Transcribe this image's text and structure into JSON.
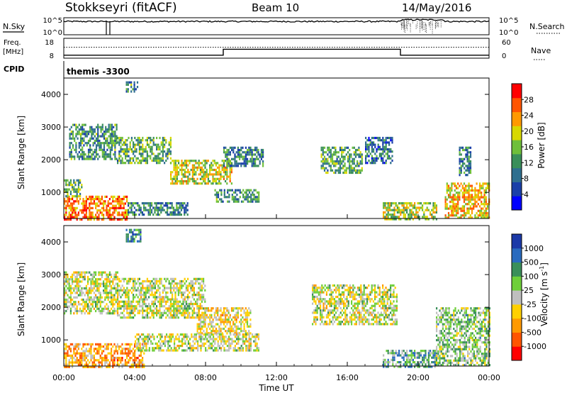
{
  "header": {
    "station": "Stokkseyri (fitACF)",
    "beam": "Beam 10",
    "date": "14/May/2016"
  },
  "panels": {
    "nsky": {
      "left_label": "N.Sky",
      "left_ticks": [
        "10^5",
        "10^0"
      ],
      "right_label": "N.Search",
      "right_ticks": [
        "10^5",
        "10^0"
      ]
    },
    "freq": {
      "left_label_1": "Freq.",
      "left_label_2": "[MHz]",
      "left_ticks": [
        "18",
        "8"
      ],
      "right_label": "Nave",
      "right_ticks": [
        "60",
        "0"
      ]
    },
    "cpid": {
      "label": "CPID",
      "value": "themis -3300"
    }
  },
  "colors": {
    "power_scale": [
      "#0000ff",
      "#1a3fa8",
      "#2f6f8f",
      "#3a8f5a",
      "#6fbf3a",
      "#d8d800",
      "#ff9900",
      "#ff5500",
      "#ff0000"
    ],
    "velocity_scale": [
      "#1c3aa8",
      "#2a6bbf",
      "#3a8f5a",
      "#6fcf3a",
      "#bfbfbf",
      "#ffd000",
      "#ff9900",
      "#ff5500",
      "#ff0000"
    ]
  },
  "chart_data": [
    {
      "type": "heatmap",
      "name": "power",
      "xlabel": "",
      "ylabel": "Slant Range [km]",
      "x_range_hours": [
        0,
        24
      ],
      "ylim": [
        200,
        4500
      ],
      "yticks": [
        1000,
        2000,
        3000,
        4000
      ],
      "colorbar_label": "Power [dB]",
      "colorbar_ticks": [
        "28",
        "24",
        "20",
        "16",
        "12",
        "8",
        "4"
      ],
      "regions": [
        {
          "t0": 0.0,
          "t1": 3.6,
          "r0": 200,
          "r1": 900,
          "level": 0.82
        },
        {
          "t0": 0.0,
          "t1": 1.0,
          "r0": 900,
          "r1": 1400,
          "level": 0.45
        },
        {
          "t0": 0.3,
          "t1": 3.0,
          "r0": 2000,
          "r1": 3100,
          "level": 0.35
        },
        {
          "t0": 3.0,
          "t1": 6.0,
          "r0": 1900,
          "r1": 2700,
          "level": 0.4
        },
        {
          "t0": 6.0,
          "t1": 9.5,
          "r0": 1300,
          "r1": 2000,
          "level": 0.6
        },
        {
          "t0": 3.6,
          "t1": 7.0,
          "r0": 300,
          "r1": 700,
          "level": 0.3
        },
        {
          "t0": 8.5,
          "t1": 11.0,
          "r0": 700,
          "r1": 1100,
          "level": 0.35
        },
        {
          "t0": 9.0,
          "t1": 11.2,
          "r0": 1800,
          "r1": 2400,
          "level": 0.3
        },
        {
          "t0": 14.5,
          "t1": 16.8,
          "r0": 1600,
          "r1": 2400,
          "level": 0.4
        },
        {
          "t0": 17.0,
          "t1": 18.5,
          "r0": 1900,
          "r1": 2700,
          "level": 0.25
        },
        {
          "t0": 18.0,
          "t1": 21.0,
          "r0": 200,
          "r1": 700,
          "level": 0.55
        },
        {
          "t0": 21.5,
          "t1": 24.0,
          "r0": 200,
          "r1": 1300,
          "level": 0.7
        },
        {
          "t0": 22.3,
          "t1": 23.0,
          "r0": 1500,
          "r1": 2400,
          "level": 0.3
        },
        {
          "t0": 3.5,
          "t1": 4.2,
          "r0": 4100,
          "r1": 4400,
          "level": 0.35
        }
      ]
    },
    {
      "type": "heatmap",
      "name": "velocity",
      "xlabel": "Time UT",
      "ylabel": "Slant Range [km]",
      "x_range_hours": [
        0,
        24
      ],
      "ylim": [
        200,
        4500
      ],
      "yticks": [
        1000,
        2000,
        3000,
        4000
      ],
      "xticks": [
        "00:00",
        "04:00",
        "08:00",
        "12:00",
        "16:00",
        "20:00",
        "00:00"
      ],
      "colorbar_label": "Velocity [m s-1]",
      "colorbar_ticks": [
        "1000",
        "500",
        "100",
        "25",
        "-25",
        "-100",
        "-500",
        "-1000"
      ],
      "regions": [
        {
          "t0": 0.0,
          "t1": 4.5,
          "r0": 200,
          "r1": 900,
          "vel": 0.72
        },
        {
          "t0": 0.0,
          "t1": 3.0,
          "r0": 1800,
          "r1": 3100,
          "vel": 0.5
        },
        {
          "t0": 3.0,
          "t1": 8.0,
          "r0": 1700,
          "r1": 2900,
          "vel": 0.5
        },
        {
          "t0": 7.5,
          "t1": 10.5,
          "r0": 1200,
          "r1": 2000,
          "vel": 0.6
        },
        {
          "t0": 4.0,
          "t1": 11.0,
          "r0": 700,
          "r1": 1200,
          "vel": 0.5
        },
        {
          "t0": 14.0,
          "t1": 18.8,
          "r0": 1500,
          "r1": 2700,
          "vel": 0.5
        },
        {
          "t0": 18.0,
          "t1": 21.0,
          "r0": 200,
          "r1": 700,
          "vel": 0.3
        },
        {
          "t0": 21.0,
          "t1": 24.0,
          "r0": 200,
          "r1": 2000,
          "vel": 0.4
        },
        {
          "t0": 3.5,
          "t1": 4.3,
          "r0": 4000,
          "r1": 4400,
          "vel": 0.2
        }
      ]
    }
  ],
  "upper_series": {
    "nsky_level": 0.78,
    "nsky_dips_hours": [
      2.4,
      2.6
    ],
    "nsearch_level": 0.35,
    "freq_steps": [
      {
        "t0": 0.0,
        "t1": 9.0,
        "level": 0.15
      },
      {
        "t0": 9.0,
        "t1": 19.0,
        "level": 0.45
      },
      {
        "t0": 19.0,
        "t1": 24.0,
        "level": 0.15
      }
    ],
    "nave_level": 0.55
  }
}
